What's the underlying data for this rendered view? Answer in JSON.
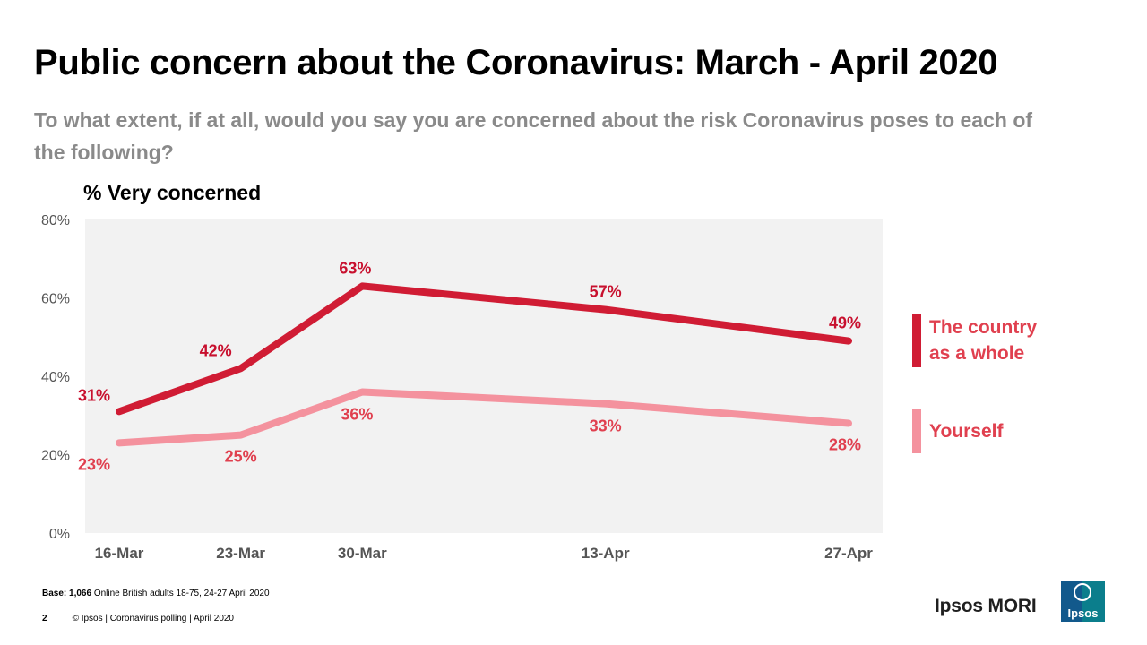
{
  "title": "Public concern about the Coronavirus: March - April 2020",
  "subtitle": "To what extent, if at all, would you say you are concerned about the risk Coronavirus poses to each of the following?",
  "measure_label": "% Very concerned",
  "chart_data": {
    "type": "line",
    "x": [
      "16-Mar",
      "23-Mar",
      "30-Mar",
      "13-Apr",
      "27-Apr"
    ],
    "x_days": [
      0,
      7,
      14,
      28,
      42
    ],
    "ylim": [
      0,
      80
    ],
    "yticks": [
      "0%",
      "20%",
      "40%",
      "60%",
      "80%"
    ],
    "grid": false,
    "plot_background": "#f2f2f2",
    "series": [
      {
        "name": "The country as a whole",
        "values": [
          31,
          42,
          63,
          57,
          49
        ],
        "labels": [
          "31%",
          "42%",
          "63%",
          "57%",
          "49%"
        ],
        "color": "#d01c34",
        "label_color": "#c8102e"
      },
      {
        "name": "Yourself",
        "values": [
          23,
          25,
          36,
          33,
          28
        ],
        "labels": [
          "23%",
          "25%",
          "36%",
          "33%",
          "28%"
        ],
        "color": "#f4929e",
        "label_color": "#e0404f"
      }
    ]
  },
  "legend": [
    {
      "label_line1": "The country",
      "label_line2": "as a whole",
      "color": "#d01c34"
    },
    {
      "label_line1": "Yourself",
      "color": "#f4929e"
    }
  ],
  "footer": {
    "base_bold": "Base: 1,066",
    "base_text": " Online British adults 18-75,  24-27 April 2020",
    "page_number": "2",
    "copyright": "© Ipsos | Coronavirus polling | April 2020"
  },
  "brand": {
    "name": "Ipsos MORI",
    "logo_text": "Ipsos",
    "logo_color": "#0b7e8c"
  }
}
